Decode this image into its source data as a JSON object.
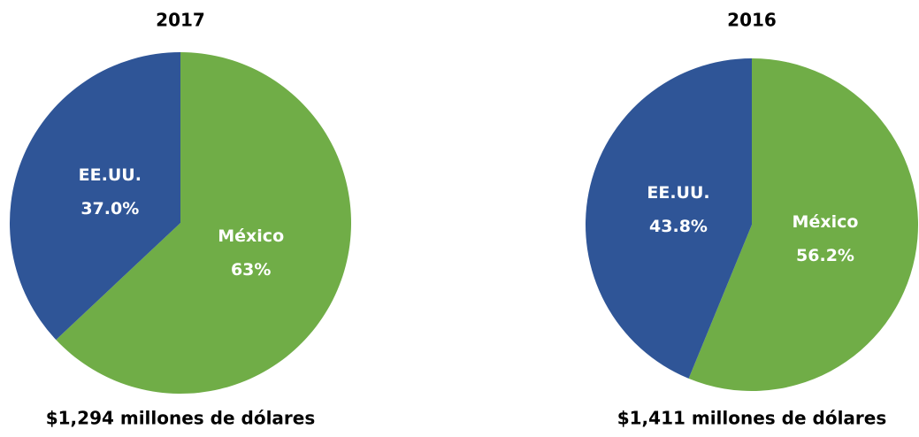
{
  "chart_data": [
    {
      "type": "pie",
      "title": "2017",
      "categories": [
        "México",
        "EE.UU."
      ],
      "values": [
        63,
        37.0
      ],
      "value_labels": [
        "63%",
        "37.0%"
      ],
      "colors": [
        "#70ad47",
        "#2f5597"
      ],
      "annotation": "$1,294 millones de dólares"
    },
    {
      "type": "pie",
      "title": "2016",
      "categories": [
        "México",
        "EE.UU."
      ],
      "values": [
        56.2,
        43.8
      ],
      "value_labels": [
        "56.2%",
        "43.8%"
      ],
      "colors": [
        "#70ad47",
        "#2f5597"
      ],
      "annotation": "$1,411 millones de dólares"
    }
  ]
}
